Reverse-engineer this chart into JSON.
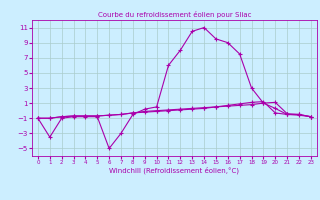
{
  "title": "Courbe du refroidissement éolien pour Sliac",
  "xlabel": "Windchill (Refroidissement éolien,°C)",
  "background_color": "#cceeff",
  "grid_color": "#aacccc",
  "line_color": "#aa00aa",
  "x": [
    0,
    1,
    2,
    3,
    4,
    5,
    6,
    7,
    8,
    9,
    10,
    11,
    12,
    13,
    14,
    15,
    16,
    17,
    18,
    19,
    20,
    21,
    22,
    23
  ],
  "y_main": [
    -1.0,
    -3.5,
    -1.0,
    -0.8,
    -0.8,
    -0.8,
    -5.0,
    -3.0,
    -0.5,
    0.2,
    0.5,
    6.0,
    8.0,
    10.5,
    11.0,
    9.5,
    9.0,
    7.5,
    3.0,
    1.0,
    0.3,
    -0.5,
    -0.5,
    -0.8
  ],
  "y_line2": [
    -1.0,
    -1.0,
    -0.8,
    -0.7,
    -0.7,
    -0.7,
    -0.6,
    -0.5,
    -0.3,
    -0.1,
    0.0,
    0.1,
    0.2,
    0.3,
    0.4,
    0.5,
    0.6,
    0.7,
    0.8,
    1.0,
    1.1,
    -0.4,
    -0.5,
    -0.8
  ],
  "y_line3": [
    -1.0,
    -1.0,
    -0.8,
    -0.7,
    -0.7,
    -0.7,
    -0.6,
    -0.5,
    -0.3,
    -0.2,
    -0.1,
    0.0,
    0.1,
    0.2,
    0.3,
    0.5,
    0.7,
    0.9,
    1.1,
    1.2,
    -0.3,
    -0.5,
    -0.6,
    -0.8
  ],
  "ylim": [
    -6,
    12
  ],
  "yticks": [
    -5,
    -3,
    -1,
    1,
    3,
    5,
    7,
    9,
    11
  ],
  "xticks": [
    0,
    1,
    2,
    3,
    4,
    5,
    6,
    7,
    8,
    9,
    10,
    11,
    12,
    13,
    14,
    15,
    16,
    17,
    18,
    19,
    20,
    21,
    22,
    23
  ],
  "xlim": [
    -0.5,
    23.5
  ]
}
